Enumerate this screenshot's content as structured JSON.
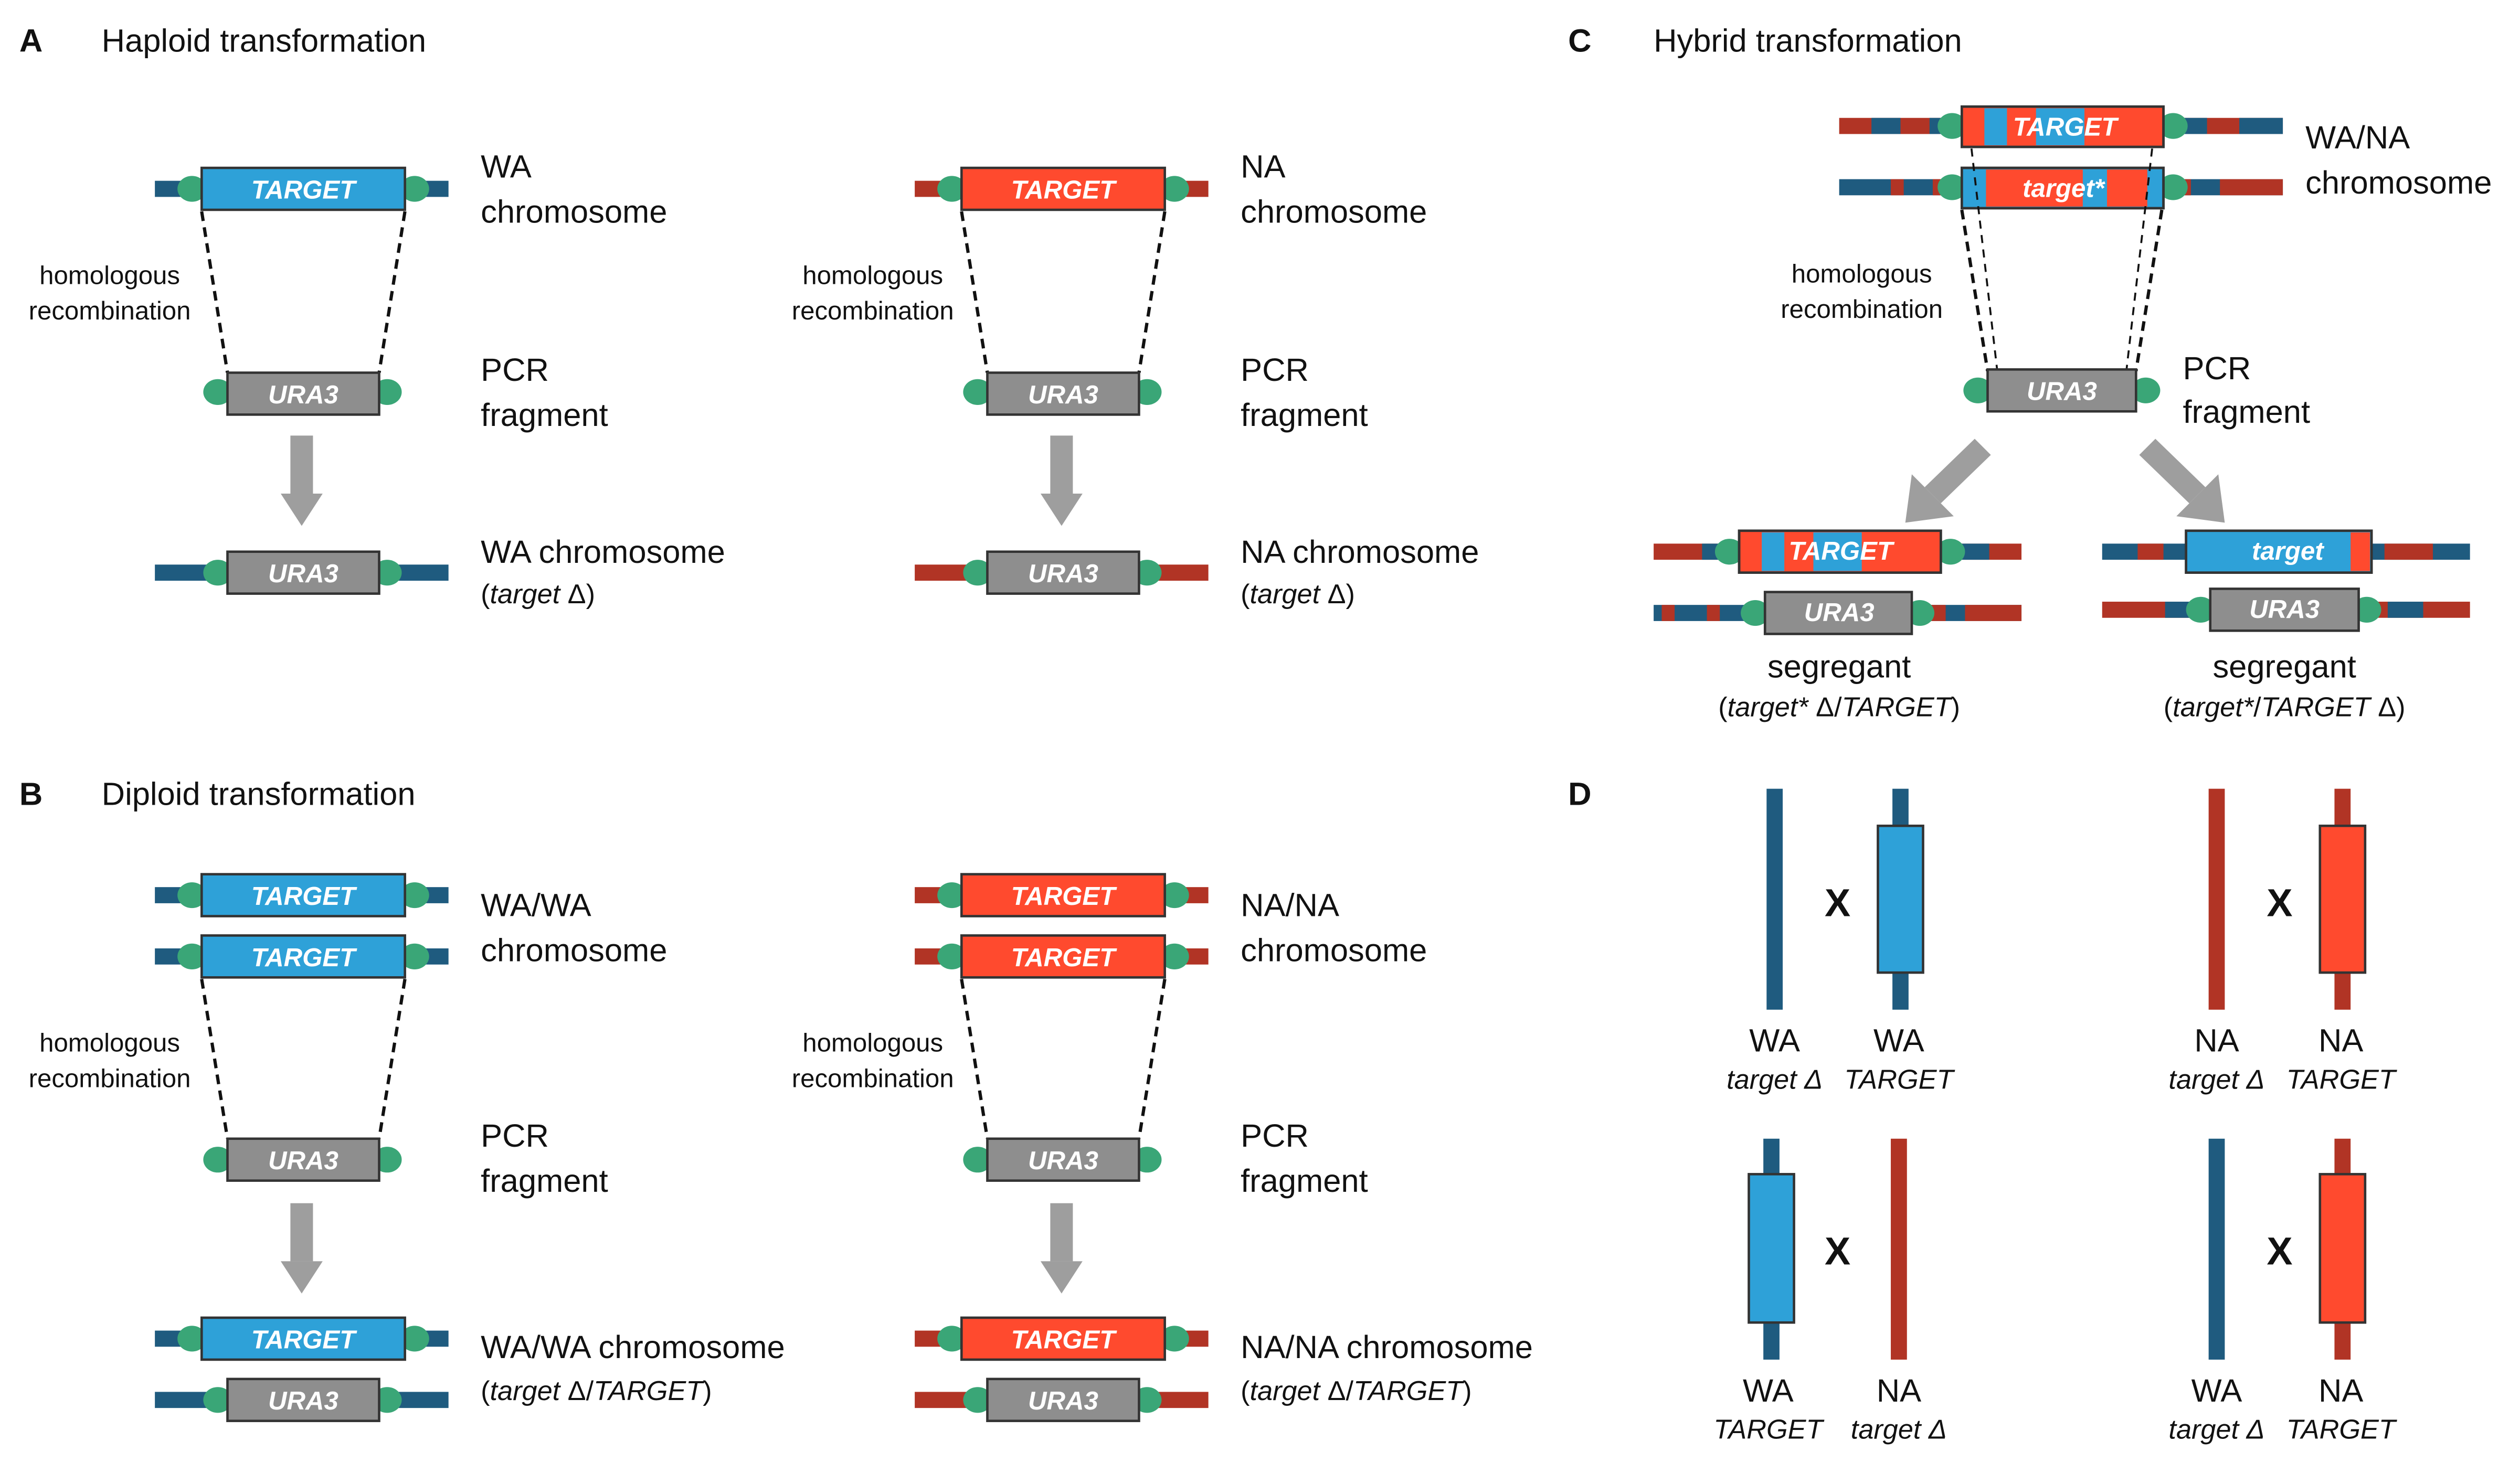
{
  "colors": {
    "wa_chromosome": "#1f5b7f",
    "na_chromosome": "#b13425",
    "wa_gene": "#2ea1d8",
    "na_gene": "#ff4a2e",
    "ura3": "#8e8e8e",
    "homology_cap": "#3aa677",
    "arrow": "#9e9e9e"
  },
  "genes": {
    "target": "TARGET",
    "target_star": "target*",
    "target_lower": "target",
    "ura3": "URA3"
  },
  "panel_a": {
    "letter": "A",
    "title": "Haploid transformation",
    "homologous": "homologous",
    "recombination": "recombination",
    "wa_line1": "WA",
    "na_line1": "NA",
    "chromosome": "chromosome",
    "pcr": "PCR",
    "fragment": "fragment",
    "wa_result": "WA chromosome",
    "na_result": "NA chromosome",
    "result_sub_target": "target",
    "result_sub_delta": "Δ"
  },
  "panel_b": {
    "letter": "B",
    "title": "Diploid transformation",
    "homologous": "homologous",
    "recombination": "recombination",
    "wawa_line1": "WA/WA",
    "nana_line1": "NA/NA",
    "chromosome": "chromosome",
    "pcr": "PCR",
    "fragment": "fragment",
    "wawa_result": "WA/WA chromosome",
    "nana_result": "NA/NA chromosome",
    "result_sub_target": "target",
    "result_sub_mid": "Δ/",
    "result_sub_target_upper": "TARGET"
  },
  "panel_c": {
    "letter": "C",
    "title": "Hybrid transformation",
    "wana_line1": "WA/NA",
    "chromosome": "chromosome",
    "homologous": "homologous",
    "recombination": "recombination",
    "pcr": "PCR",
    "fragment": "fragment",
    "segregant": "segregant",
    "seg1_part1": "target*",
    "seg1_part2": "Δ/",
    "seg1_part3": "TARGET",
    "seg2_part1": "target*",
    "seg2_part2": "/",
    "seg2_part3": "TARGET",
    "seg2_part4": "Δ"
  },
  "panel_d": {
    "letter": "D",
    "cross": "X",
    "wa": "WA",
    "na": "NA",
    "target_delta": "target Δ",
    "target_upper": "TARGET"
  }
}
